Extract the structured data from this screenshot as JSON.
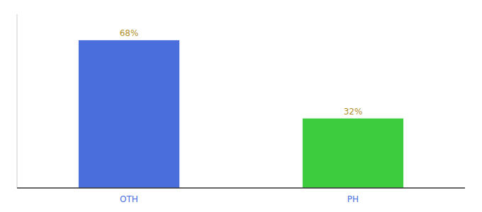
{
  "chart_data": {
    "type": "bar",
    "categories": [
      "OTH",
      "PH"
    ],
    "values": [
      68,
      32
    ],
    "value_labels": [
      "68%",
      "32%"
    ],
    "colors": [
      "#4a6fdc",
      "#3dcc3d"
    ],
    "ylim": [
      0,
      80
    ],
    "data_labels": true,
    "tick_labels": "x"
  }
}
